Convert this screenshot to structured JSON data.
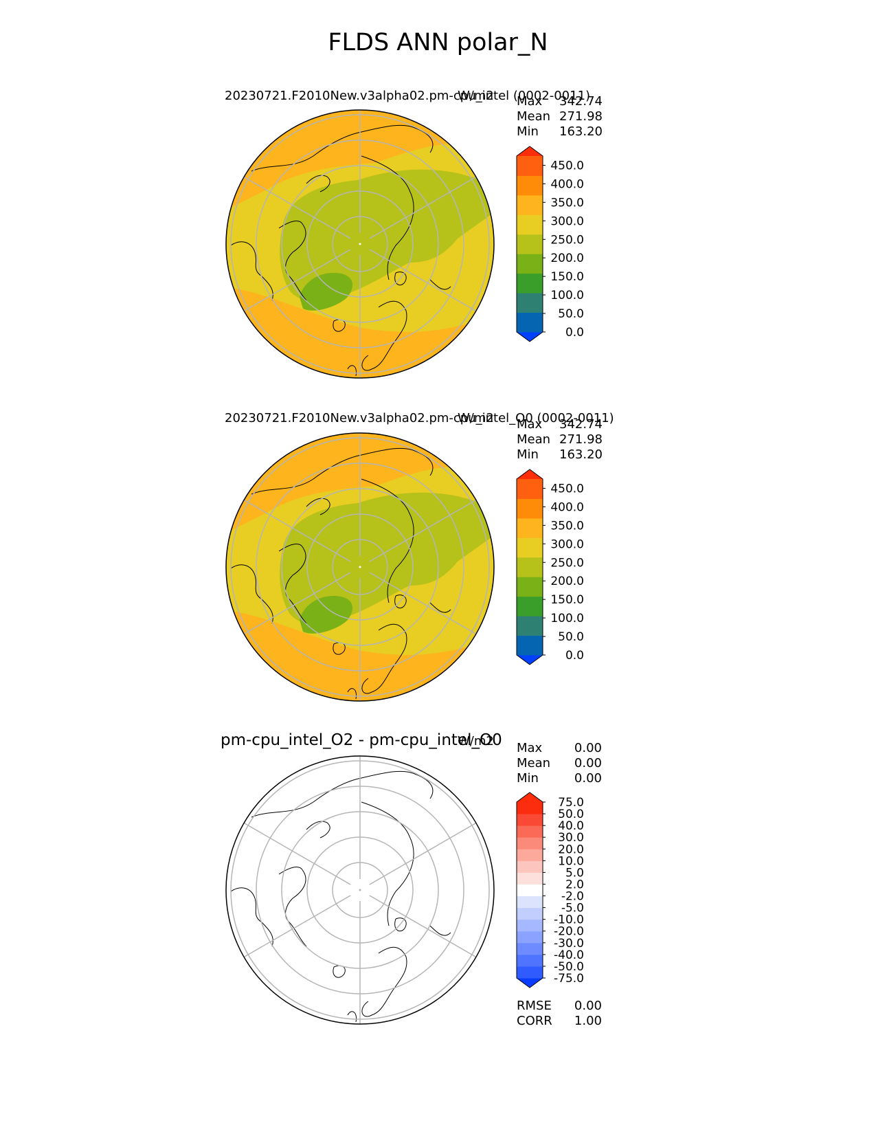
{
  "figure_title": "FLDS ANN polar_N",
  "chart_data": [
    {
      "type": "heatmap",
      "projection": "north polar stereographic",
      "title": "20230721.F2010New.v3alpha02.pm-cpu_intel (0002-0011)",
      "units": "W/m2",
      "stats": [
        {
          "label": "Max",
          "value": "342.74"
        },
        {
          "label": "Mean",
          "value": "271.98"
        },
        {
          "label": "Min",
          "value": "163.20"
        }
      ],
      "colorbar": {
        "extend": "both",
        "levels": [
          0,
          25,
          50,
          75,
          100,
          125,
          150,
          175,
          200,
          225,
          250,
          275,
          300,
          325,
          350,
          375,
          400,
          425,
          450,
          475
        ],
        "tick_labels": [
          "0.0",
          "50.0",
          "100.0",
          "150.0",
          "200.0",
          "250.0",
          "300.0",
          "350.0",
          "400.0",
          "450.0"
        ],
        "colors": [
          "#0040ff",
          "#0565b0",
          "#2e8073",
          "#3a9e2a",
          "#7ab116",
          "#b6c21a",
          "#e8cd22",
          "#fdb41d",
          "#ff8c08",
          "#ff6010",
          "#ff2e0a"
        ]
      }
    },
    {
      "type": "heatmap",
      "projection": "north polar stereographic",
      "title": "20230721.F2010New.v3alpha02.pm-cpu_intel_O0 (0002-0011)",
      "units": "W/m2",
      "stats": [
        {
          "label": "Max",
          "value": "342.74"
        },
        {
          "label": "Mean",
          "value": "271.98"
        },
        {
          "label": "Min",
          "value": "163.20"
        }
      ],
      "colorbar": {
        "extend": "both",
        "levels": [
          0,
          25,
          50,
          75,
          100,
          125,
          150,
          175,
          200,
          225,
          250,
          275,
          300,
          325,
          350,
          375,
          400,
          425,
          450,
          475
        ],
        "tick_labels": [
          "0.0",
          "50.0",
          "100.0",
          "150.0",
          "200.0",
          "250.0",
          "300.0",
          "350.0",
          "400.0",
          "450.0"
        ],
        "colors": [
          "#0040ff",
          "#0565b0",
          "#2e8073",
          "#3a9e2a",
          "#7ab116",
          "#b6c21a",
          "#e8cd22",
          "#fdb41d",
          "#ff8c08",
          "#ff6010",
          "#ff2e0a"
        ]
      }
    },
    {
      "type": "heatmap",
      "projection": "north polar stereographic",
      "title": "pm-cpu_intel_O2 - pm-cpu_intel_O0",
      "units": "W/m2",
      "stats": [
        {
          "label": "Max",
          "value": "0.00"
        },
        {
          "label": "Mean",
          "value": "0.00"
        },
        {
          "label": "Min",
          "value": "0.00"
        }
      ],
      "metrics": [
        {
          "label": "RMSE",
          "value": "0.00"
        },
        {
          "label": "CORR",
          "value": "1.00"
        }
      ],
      "colorbar": {
        "extend": "both",
        "levels": [
          -75,
          -50,
          -40,
          -30,
          -20,
          -10,
          -5,
          -2,
          2,
          5,
          10,
          20,
          30,
          40,
          50,
          75
        ],
        "tick_labels": [
          "-75.0",
          "-50.0",
          "-40.0",
          "-30.0",
          "-20.0",
          "-10.0",
          "-5.0",
          "-2.0",
          "2.0",
          "5.0",
          "10.0",
          "20.0",
          "30.0",
          "40.0",
          "50.0",
          "75.0"
        ],
        "colors": [
          "#0a3cff",
          "#2f5bff",
          "#4f74ff",
          "#6e8cff",
          "#8ba3ff",
          "#a6b8ff",
          "#c2cffe",
          "#dbe3fd",
          "#ffffff",
          "#fde0dc",
          "#fcc6be",
          "#fca99c",
          "#fc8a7a",
          "#fb6a57",
          "#fa4a35",
          "#fc2c0e",
          "#ff2e0a"
        ]
      }
    }
  ]
}
